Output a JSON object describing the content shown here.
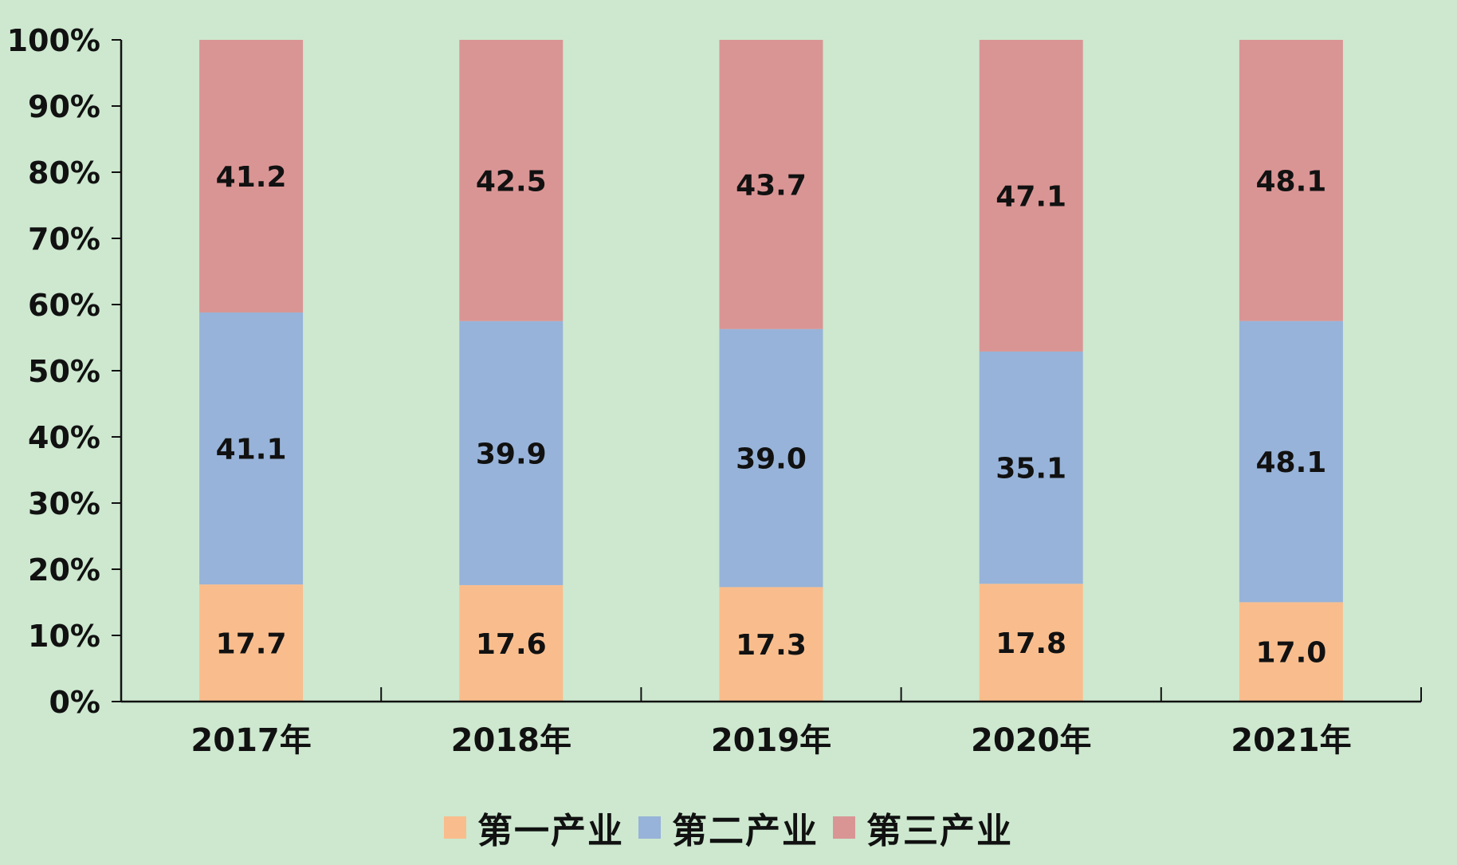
{
  "chart_data": {
    "type": "bar",
    "stacked": true,
    "categories": [
      "2017年",
      "2018年",
      "2019年",
      "2020年",
      "2021年"
    ],
    "series": [
      {
        "name": "第一产业",
        "color": "#f9bd8d",
        "values": [
          17.7,
          17.6,
          17.3,
          17.8,
          17.0
        ],
        "labels": [
          "17.7",
          "17.6",
          "17.3",
          "17.8",
          "17.0"
        ]
      },
      {
        "name": "第二产业",
        "color": "#97b3d9",
        "values": [
          41.1,
          39.9,
          39.0,
          35.1,
          48.1
        ],
        "labels": [
          "41.1",
          "39.9",
          "39.0",
          "35.1",
          "48.1"
        ]
      },
      {
        "name": "第三产业",
        "color": "#d99594",
        "values": [
          41.2,
          42.5,
          43.7,
          47.1,
          48.1
        ],
        "labels": [
          "41.2",
          "42.5",
          "43.7",
          "47.1",
          "48.1"
        ]
      }
    ],
    "normalized": true,
    "ylim": [
      0,
      100
    ],
    "yticks": [
      "0%",
      "10%",
      "20%",
      "30%",
      "40%",
      "50%",
      "60%",
      "70%",
      "80%",
      "90%",
      "100%"
    ],
    "title": "",
    "xlabel": "",
    "ylabel": "",
    "grid": false,
    "legend_position": "bottom-center",
    "background": "#cde8cf"
  }
}
